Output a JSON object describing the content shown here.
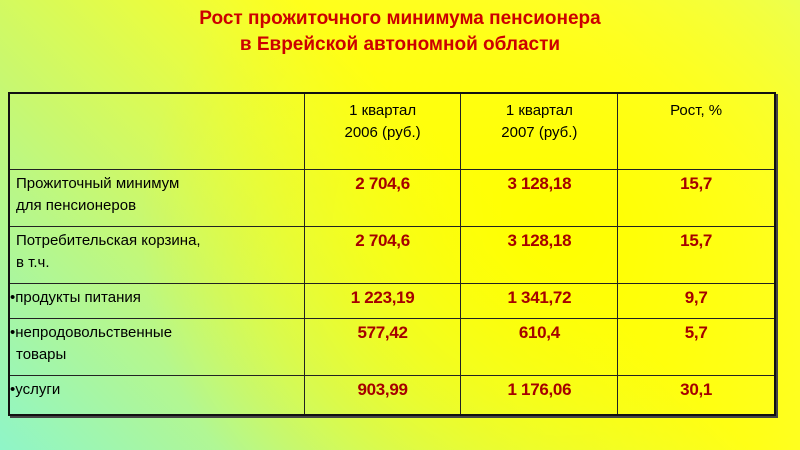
{
  "title": {
    "line1": "Рост прожиточного минимума пенсионера",
    "line2": "в Еврейской автономной области"
  },
  "colors": {
    "title": "#cc0000",
    "values": "#a50000",
    "background": "#ffff00"
  },
  "table": {
    "headers": [
      "",
      {
        "line1": "1 квартал",
        "line2": "2006 (руб.)"
      },
      {
        "line1": "1 квартал",
        "line2": "2007 (руб.)"
      },
      "Рост, %"
    ],
    "rows": [
      {
        "label1": "Прожиточный минимум",
        "label2": "для пенсионеров",
        "v2006": "2 704,6",
        "v2007": "3 128,18",
        "growth": "15,7"
      },
      {
        "label1": "Потребительская корзина,",
        "label2": "в т.ч.",
        "v2006": "2 704,6",
        "v2007": "3 128,18",
        "growth": "15,7"
      },
      {
        "bullet": "•",
        "label1": "продукты питания",
        "v2006": "1 223,19",
        "v2007": "1 341,72",
        "growth": "9,7"
      },
      {
        "bullet": "•",
        "label1": "непродовольственные",
        "label2": " товары",
        "v2006": "577,42",
        "v2007": "610,4",
        "growth": "5,7"
      },
      {
        "bullet": "•",
        "label1": "услуги",
        "v2006": "903,99",
        "v2007": "1 176,06",
        "growth": "30,1"
      }
    ]
  }
}
